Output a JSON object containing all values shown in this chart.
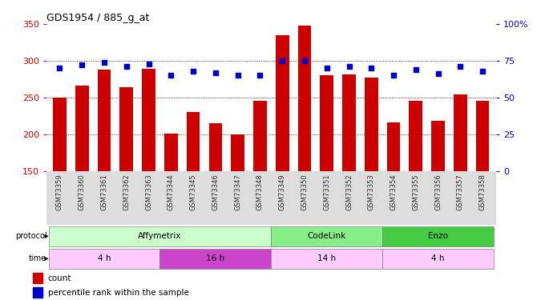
{
  "title": "GDS1954 / 885_g_at",
  "samples": [
    "GSM73359",
    "GSM73360",
    "GSM73361",
    "GSM73362",
    "GSM73363",
    "GSM73344",
    "GSM73345",
    "GSM73346",
    "GSM73347",
    "GSM73348",
    "GSM73349",
    "GSM73350",
    "GSM73351",
    "GSM73352",
    "GSM73353",
    "GSM73354",
    "GSM73355",
    "GSM73356",
    "GSM73357",
    "GSM73358"
  ],
  "count_values": [
    250,
    266,
    288,
    264,
    289,
    201,
    230,
    215,
    200,
    246,
    335,
    348,
    280,
    281,
    277,
    216,
    246,
    218,
    254,
    245
  ],
  "percentile_values": [
    70,
    72,
    74,
    71,
    73,
    65,
    68,
    67,
    65,
    65,
    75,
    75,
    70,
    71,
    70,
    65,
    69,
    66,
    71,
    68
  ],
  "ylim_left": [
    150,
    350
  ],
  "ylim_right": [
    0,
    100
  ],
  "yticks_left": [
    150,
    200,
    250,
    300,
    350
  ],
  "yticks_right": [
    0,
    25,
    50,
    75,
    100
  ],
  "bar_color": "#cc0000",
  "dot_color": "#0000cc",
  "bg_color": "#ffffff",
  "tick_color_left": "#cc0000",
  "tick_color_right": "#0000cc",
  "protocol_row": [
    {
      "label": "Affymetrix",
      "start": 0,
      "end": 9,
      "color": "#ccffcc"
    },
    {
      "label": "CodeLink",
      "start": 10,
      "end": 14,
      "color": "#88ee88"
    },
    {
      "label": "Enzo",
      "start": 15,
      "end": 19,
      "color": "#44cc44"
    }
  ],
  "time_row": [
    {
      "label": "4 h",
      "start": 0,
      "end": 4,
      "color": "#ffccff"
    },
    {
      "label": "16 h",
      "start": 5,
      "end": 9,
      "color": "#cc44cc"
    },
    {
      "label": "14 h",
      "start": 10,
      "end": 14,
      "color": "#ffccff"
    },
    {
      "label": "4 h",
      "start": 15,
      "end": 19,
      "color": "#ffccff"
    }
  ]
}
